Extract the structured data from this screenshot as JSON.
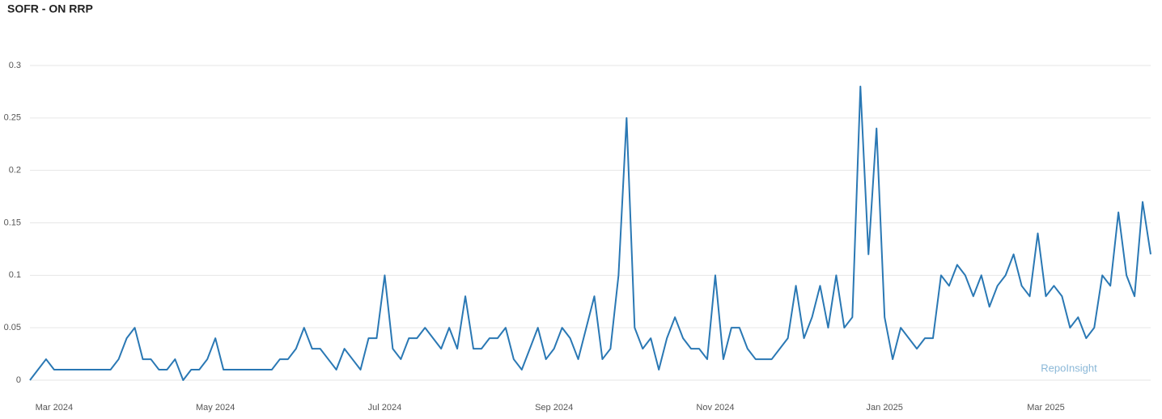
{
  "chart_data": {
    "type": "line",
    "title": "SOFR - ON RRP",
    "watermark": "RepoInsight",
    "color": "#2a78b4",
    "grid": true,
    "ylim": [
      0,
      0.3
    ],
    "yticks": [
      0,
      0.05,
      0.1,
      0.15,
      0.2,
      0.25,
      0.3
    ],
    "categories": [
      null,
      null,
      null,
      "Mar 2024",
      null,
      null,
      null,
      null,
      null,
      null,
      null,
      null,
      null,
      null,
      null,
      null,
      null,
      null,
      null,
      null,
      null,
      null,
      null,
      "May 2024",
      null,
      null,
      null,
      null,
      null,
      null,
      null,
      null,
      null,
      null,
      null,
      null,
      null,
      null,
      null,
      null,
      null,
      null,
      null,
      null,
      "Jul 2024",
      null,
      null,
      null,
      null,
      null,
      null,
      null,
      null,
      null,
      null,
      null,
      null,
      null,
      null,
      null,
      null,
      null,
      null,
      null,
      null,
      "Sep 2024",
      null,
      null,
      null,
      null,
      null,
      null,
      null,
      null,
      null,
      null,
      null,
      null,
      null,
      null,
      null,
      null,
      null,
      null,
      null,
      "Nov 2024",
      null,
      null,
      null,
      null,
      null,
      null,
      null,
      null,
      null,
      null,
      null,
      null,
      null,
      null,
      null,
      null,
      null,
      null,
      null,
      null,
      "Jan 2025",
      null,
      null,
      null,
      null,
      null,
      null,
      null,
      null,
      null,
      null,
      null,
      null,
      null,
      null,
      null,
      null,
      null,
      null,
      null,
      "Mar 2025",
      null,
      null,
      null,
      null,
      null,
      null,
      null,
      null,
      null,
      null,
      null,
      null,
      null
    ],
    "values": [
      0,
      0.01,
      0.02,
      0.01,
      0.01,
      0.01,
      0.01,
      0.01,
      0.01,
      0.01,
      0.01,
      0.02,
      0.04,
      0.05,
      0.02,
      0.02,
      0.01,
      0.01,
      0.02,
      0,
      0.01,
      0.01,
      0.02,
      0.04,
      0.01,
      0.01,
      0.01,
      0.01,
      0.01,
      0.01,
      0.01,
      0.02,
      0.02,
      0.03,
      0.05,
      0.03,
      0.03,
      0.02,
      0.01,
      0.03,
      0.02,
      0.01,
      0.04,
      0.04,
      0.1,
      0.03,
      0.02,
      0.04,
      0.04,
      0.05,
      0.04,
      0.03,
      0.05,
      0.03,
      0.08,
      0.03,
      0.03,
      0.04,
      0.04,
      0.05,
      0.02,
      0.01,
      0.03,
      0.05,
      0.02,
      0.03,
      0.05,
      0.04,
      0.02,
      0.05,
      0.08,
      0.02,
      0.03,
      0.1,
      0.25,
      0.05,
      0.03,
      0.04,
      0.01,
      0.04,
      0.06,
      0.04,
      0.03,
      0.03,
      0.02,
      0.1,
      0.02,
      0.05,
      0.05,
      0.03,
      0.02,
      0.02,
      0.02,
      0.03,
      0.04,
      0.09,
      0.04,
      0.06,
      0.09,
      0.05,
      0.1,
      0.05,
      0.06,
      0.28,
      0.12,
      0.24,
      0.06,
      0.02,
      0.05,
      0.04,
      0.03,
      0.04,
      0.04,
      0.1,
      0.09,
      0.11,
      0.1,
      0.08,
      0.1,
      0.07,
      0.09,
      0.1,
      0.12,
      0.09,
      0.08,
      0.14,
      0.08,
      0.09,
      0.08,
      0.05,
      0.06,
      0.04,
      0.05,
      0.1,
      0.09,
      0.16,
      0.1,
      0.08,
      0.17,
      0.12
    ]
  }
}
